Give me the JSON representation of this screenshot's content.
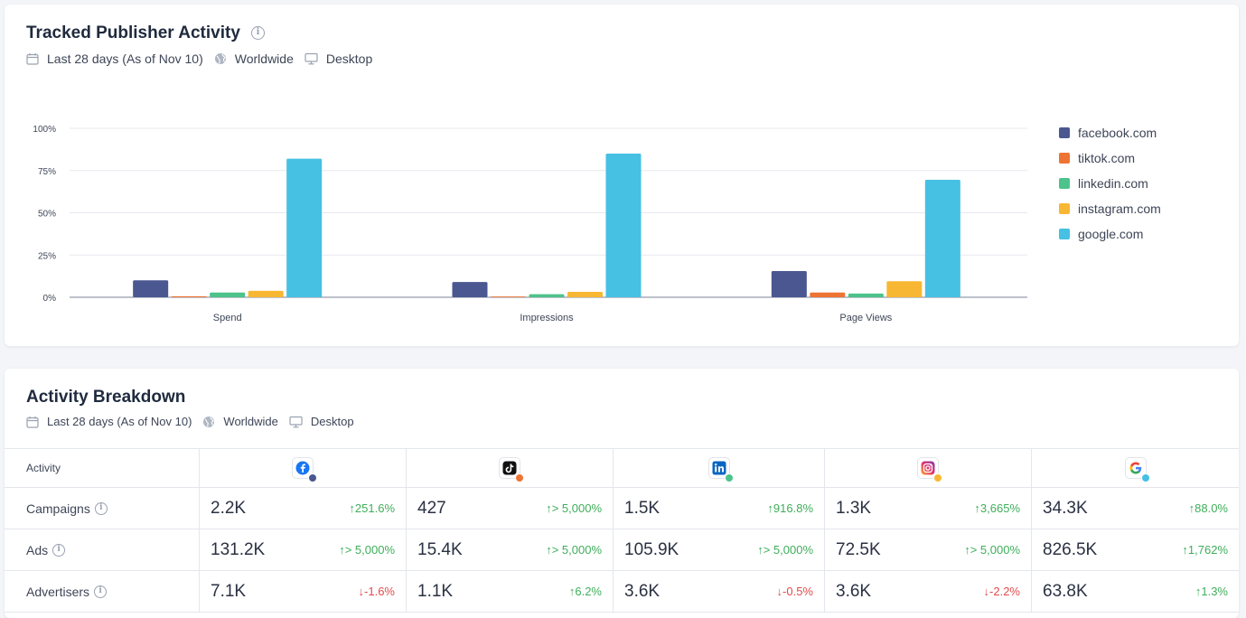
{
  "publisher_activity": {
    "title": "Tracked Publisher Activity",
    "filters": {
      "period": "Last 28 days (As of Nov 10)",
      "region": "Worldwide",
      "device": "Desktop"
    }
  },
  "chart_data": {
    "type": "bar",
    "categories": [
      "Spend",
      "Impressions",
      "Page Views"
    ],
    "series": [
      {
        "name": "facebook.com",
        "color": "#4a5790",
        "values": [
          10,
          9,
          15.5
        ]
      },
      {
        "name": "tiktok.com",
        "color": "#ee7433",
        "values": [
          0.6,
          0.5,
          2.8
        ]
      },
      {
        "name": "linkedin.com",
        "color": "#4cc38a",
        "values": [
          2.8,
          1.8,
          2.2
        ]
      },
      {
        "name": "instagram.com",
        "color": "#f8b733",
        "values": [
          3.8,
          3.2,
          9.5
        ]
      },
      {
        "name": "google.com",
        "color": "#46c0e3",
        "values": [
          82,
          85,
          69.5
        ]
      }
    ],
    "yticks": [
      "100%",
      "75%",
      "50%",
      "25%",
      "0%"
    ],
    "ylim": [
      0,
      100
    ],
    "grid": true,
    "legend": "right"
  },
  "breakdown": {
    "title": "Activity Breakdown",
    "filters": {
      "period": "Last 28 days (As of Nov 10)",
      "region": "Worldwide",
      "device": "Desktop"
    },
    "header_label": "Activity",
    "brands": [
      {
        "icon": "facebook-icon",
        "dot": "#4a5790"
      },
      {
        "icon": "tiktok-icon",
        "dot": "#ee7433"
      },
      {
        "icon": "linkedin-icon",
        "dot": "#4cc38a"
      },
      {
        "icon": "instagram-icon",
        "dot": "#f8b733"
      },
      {
        "icon": "google-icon",
        "dot": "#46c0e3"
      }
    ],
    "rows": [
      {
        "label": "Campaigns",
        "cells": [
          {
            "value": "2.2K",
            "change": "↑251.6%",
            "dir": "up"
          },
          {
            "value": "427",
            "change": "↑> 5,000%",
            "dir": "up"
          },
          {
            "value": "1.5K",
            "change": "↑916.8%",
            "dir": "up"
          },
          {
            "value": "1.3K",
            "change": "↑3,665%",
            "dir": "up"
          },
          {
            "value": "34.3K",
            "change": "↑88.0%",
            "dir": "up"
          }
        ]
      },
      {
        "label": "Ads",
        "cells": [
          {
            "value": "131.2K",
            "change": "↑> 5,000%",
            "dir": "up"
          },
          {
            "value": "15.4K",
            "change": "↑> 5,000%",
            "dir": "up"
          },
          {
            "value": "105.9K",
            "change": "↑> 5,000%",
            "dir": "up"
          },
          {
            "value": "72.5K",
            "change": "↑> 5,000%",
            "dir": "up"
          },
          {
            "value": "826.5K",
            "change": "↑1,762%",
            "dir": "up"
          }
        ]
      },
      {
        "label": "Advertisers",
        "cells": [
          {
            "value": "7.1K",
            "change": "↓-1.6%",
            "dir": "down"
          },
          {
            "value": "1.1K",
            "change": "↑6.2%",
            "dir": "up"
          },
          {
            "value": "3.6K",
            "change": "↓-0.5%",
            "dir": "down"
          },
          {
            "value": "3.6K",
            "change": "↓-2.2%",
            "dir": "down"
          },
          {
            "value": "63.8K",
            "change": "↑1.3%",
            "dir": "up"
          }
        ]
      }
    ]
  }
}
